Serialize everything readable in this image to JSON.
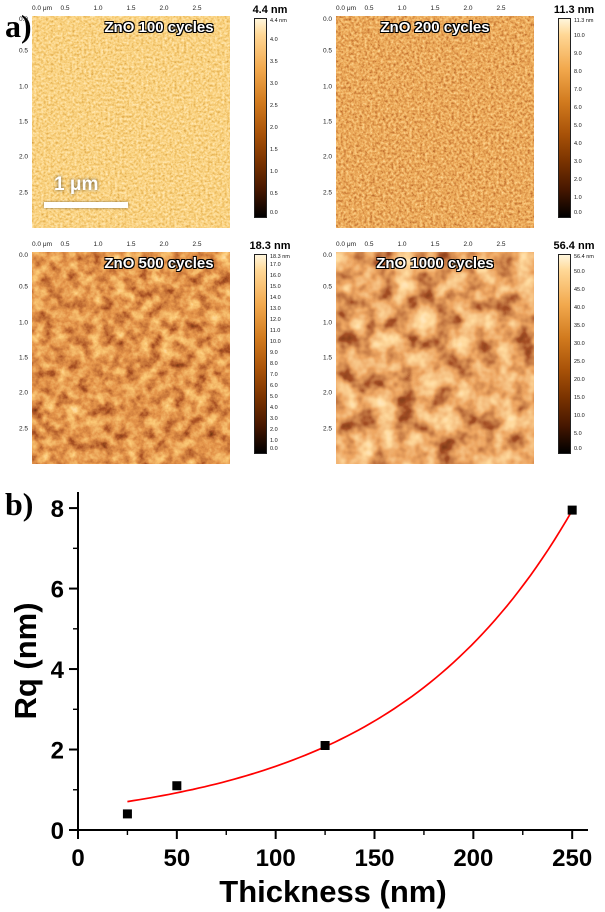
{
  "figure": {
    "panel_a_label": "a)",
    "panel_b_label": "b)"
  },
  "panel_a": {
    "ruler_top": [
      "0.0 μm",
      "0.5",
      "1.0",
      "1.5",
      "2.0",
      "2.5"
    ],
    "ruler_left": [
      "0.0",
      "0.5",
      "1.0",
      "1.5",
      "2.0",
      "2.5"
    ],
    "scalebar_label": "1 μm",
    "images": [
      {
        "title": "ZnO 100 cycles",
        "scale_max": "4.4 nm",
        "colorbar_ticks": [
          "4.4 nm",
          "4.0",
          "3.5",
          "3.0",
          "2.5",
          "2.0",
          "1.5",
          "1.0",
          "0.5",
          "0.0"
        ]
      },
      {
        "title": "ZnO 200 cycles",
        "scale_max": "11.3 nm",
        "colorbar_ticks": [
          "11.3 nm",
          "10.0",
          "9.0",
          "8.0",
          "7.0",
          "6.0",
          "5.0",
          "4.0",
          "3.0",
          "2.0",
          "1.0",
          "0.0"
        ]
      },
      {
        "title": "ZnO 500 cycles",
        "scale_max": "18.3 nm",
        "colorbar_ticks": [
          "18.3 nm",
          "17.0",
          "16.0",
          "15.0",
          "14.0",
          "13.0",
          "12.0",
          "11.0",
          "10.0",
          "9.0",
          "8.0",
          "7.0",
          "6.0",
          "5.0",
          "4.0",
          "3.0",
          "2.0",
          "1.0",
          "0.0"
        ]
      },
      {
        "title": "ZnO 1000 cycles",
        "scale_max": "56.4 nm",
        "colorbar_ticks": [
          "56.4 nm",
          "50.0",
          "45.0",
          "40.0",
          "35.0",
          "30.0",
          "25.0",
          "20.0",
          "15.0",
          "10.0",
          "5.0",
          "0.0"
        ]
      }
    ]
  },
  "chart_data": {
    "type": "scatter",
    "title": "",
    "xlabel": "Thickness (nm)",
    "ylabel": "Rq (nm)",
    "xlim": [
      0,
      258
    ],
    "ylim": [
      0,
      8.4
    ],
    "x_ticks": [
      0,
      50,
      100,
      150,
      200,
      250
    ],
    "y_ticks": [
      0,
      2,
      4,
      6,
      8
    ],
    "x_minor_step": 25,
    "y_minor_step": 1,
    "grid": false,
    "legend": "none",
    "marker": "square",
    "marker_color": "#000000",
    "points": [
      [
        25,
        0.4
      ],
      [
        50,
        1.1
      ],
      [
        125,
        2.1
      ],
      [
        250,
        7.95
      ]
    ],
    "fit": {
      "type": "exponential",
      "a": 0.54,
      "tau": 93,
      "x_range": [
        25,
        250
      ],
      "color": "#ff0000"
    }
  }
}
